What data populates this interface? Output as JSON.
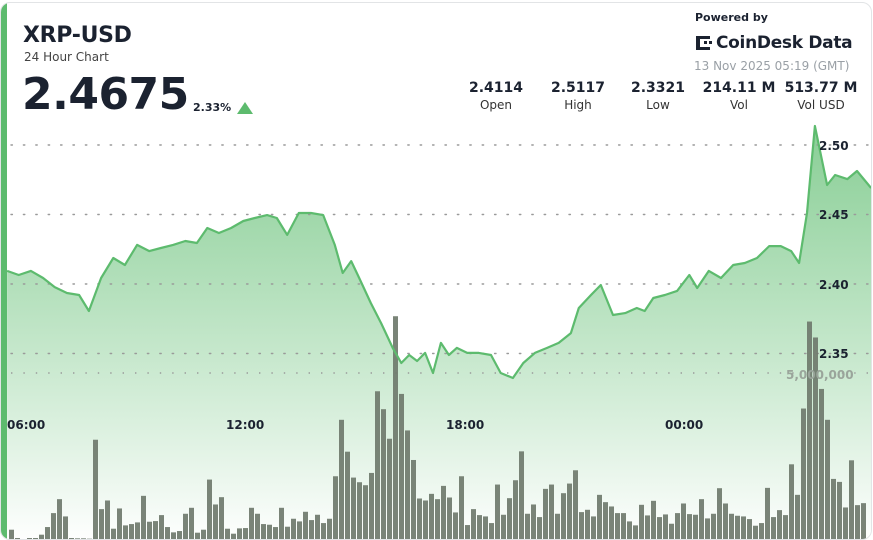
{
  "header": {
    "pair": "XRP-USD",
    "subtitle": "24 Hour Chart",
    "price": "2.4675",
    "change": "2.33%",
    "change_direction": "up",
    "powered_by": "Powered by",
    "brand": "CoinDesk Data",
    "timestamp": "13 Nov 2025 05:19 (GMT)"
  },
  "stats": [
    {
      "value": "2.4114",
      "label": "Open"
    },
    {
      "value": "2.5117",
      "label": "High"
    },
    {
      "value": "2.3321",
      "label": "Low"
    },
    {
      "value": "214.11 M",
      "label": "Vol"
    },
    {
      "value": "513.77 M",
      "label": "Vol USD"
    }
  ],
  "colors": {
    "accent": "#5dbb6e",
    "line": "#5dbb6e",
    "fill_top": "#7cc98a",
    "bars": "#6f7a6d",
    "text": "#1b2230"
  },
  "chart_data": {
    "type": "area",
    "title": "24 Hour Chart",
    "x_ticks": [
      "06:00",
      "12:00",
      "18:00",
      "00:00"
    ],
    "y_ticks": [
      "2.50",
      "2.45",
      "2.40",
      "2.35"
    ],
    "ylim": [
      2.33,
      2.52
    ],
    "grid": true,
    "price_series": {
      "x": [
        "05:34",
        "05:53",
        "06:13",
        "06:33",
        "06:52",
        "07:12",
        "07:32",
        "07:48",
        "08:08",
        "08:28",
        "08:47",
        "09:07",
        "09:27",
        "09:46",
        "10:06",
        "10:26",
        "10:45",
        "11:02",
        "11:21",
        "11:41",
        "12:01",
        "12:20",
        "12:40",
        "12:56",
        "13:13",
        "13:32",
        "13:52",
        "14:12",
        "14:31",
        "14:44",
        "14:58",
        "15:11",
        "15:30",
        "15:47",
        "16:06",
        "16:20",
        "16:33",
        "16:46",
        "16:59",
        "17:12",
        "17:25",
        "17:38",
        "17:51",
        "18:08",
        "18:27",
        "18:47",
        "19:03",
        "19:23",
        "19:40",
        "19:59",
        "20:19",
        "20:38",
        "20:58",
        "21:11",
        "21:31",
        "21:47",
        "22:07",
        "22:27",
        "22:46",
        "22:59",
        "23:13",
        "23:32",
        "23:52",
        "00:12",
        "00:25",
        "00:44",
        "01:04",
        "01:24",
        "01:43",
        "02:03",
        "02:23",
        "02:42",
        "02:59",
        "03:12",
        "03:25",
        "03:38",
        "03:58",
        "04:11",
        "04:31",
        "04:47",
        "05:10"
      ],
      "y": [
        2.4094,
        2.4065,
        2.4094,
        2.4043,
        2.3978,
        2.3935,
        2.3921,
        2.3806,
        2.4043,
        2.4187,
        2.4137,
        2.4281,
        2.4237,
        2.4259,
        2.4281,
        2.4309,
        2.4295,
        2.4403,
        2.4367,
        2.4403,
        2.4453,
        2.4475,
        2.4496,
        2.4475,
        2.4353,
        2.4511,
        2.4511,
        2.4496,
        2.4281,
        2.4079,
        2.4165,
        2.4043,
        2.3863,
        2.3719,
        2.354,
        2.3432,
        2.3489,
        2.3446,
        2.3504,
        2.336,
        2.3576,
        2.3489,
        2.354,
        2.3504,
        2.3504,
        2.3489,
        2.336,
        2.3324,
        2.3432,
        2.3504,
        2.354,
        2.3576,
        2.3647,
        2.3827,
        2.3921,
        2.3993,
        2.3777,
        2.3791,
        2.3827,
        2.3806,
        2.3899,
        2.3921,
        2.395,
        2.4065,
        2.3971,
        2.4094,
        2.4043,
        2.4137,
        2.4151,
        2.4187,
        2.4273,
        2.4273,
        2.4237,
        2.4151,
        2.4511,
        2.5137,
        2.4712,
        2.4784,
        2.4755,
        2.4813,
        2.4691
      ]
    },
    "volume_axis_tick": "5,000,000",
    "volume_axis_value": 5000000,
    "volume": [
      280000,
      30000,
      0,
      30000,
      30000,
      130000,
      360000,
      780000,
      1200000,
      680000,
      30000,
      20000,
      20000,
      10000,
      2990000,
      900000,
      1160000,
      310000,
      920000,
      410000,
      450000,
      500000,
      1300000,
      520000,
      540000,
      720000,
      360000,
      200000,
      240000,
      760000,
      940000,
      190000,
      280000,
      1790000,
      1040000,
      1260000,
      310000,
      160000,
      320000,
      330000,
      940000,
      760000,
      450000,
      430000,
      360000,
      940000,
      370000,
      610000,
      530000,
      820000,
      570000,
      730000,
      480000,
      610000,
      1890000,
      3590000,
      2630000,
      1850000,
      1710000,
      1620000,
      1990000,
      4450000,
      3910000,
      3020000,
      6710000,
      4370000,
      3270000,
      2380000,
      1220000,
      1160000,
      1360000,
      1200000,
      1600000,
      1250000,
      800000,
      1890000,
      420000,
      900000,
      720000,
      680000,
      480000,
      1640000,
      730000,
      1230000,
      1770000,
      2640000,
      760000,
      1040000,
      660000,
      1510000,
      1640000,
      760000,
      1380000,
      1670000,
      2070000,
      810000,
      880000,
      680000,
      1330000,
      1110000,
      980000,
      780000,
      780000,
      530000,
      410000,
      1030000,
      710000,
      1150000,
      660000,
      740000,
      460000,
      780000,
      1070000,
      750000,
      730000,
      1200000,
      620000,
      760000,
      1530000,
      1070000,
      760000,
      700000,
      680000,
      600000,
      400000,
      480000,
      1540000,
      660000,
      870000,
      720000,
      2250000,
      1330000,
      3930000,
      6550000,
      6070000,
      4520000,
      3590000,
      1810000,
      1720000,
      950000,
      2370000,
      1020000,
      1080000
    ]
  }
}
